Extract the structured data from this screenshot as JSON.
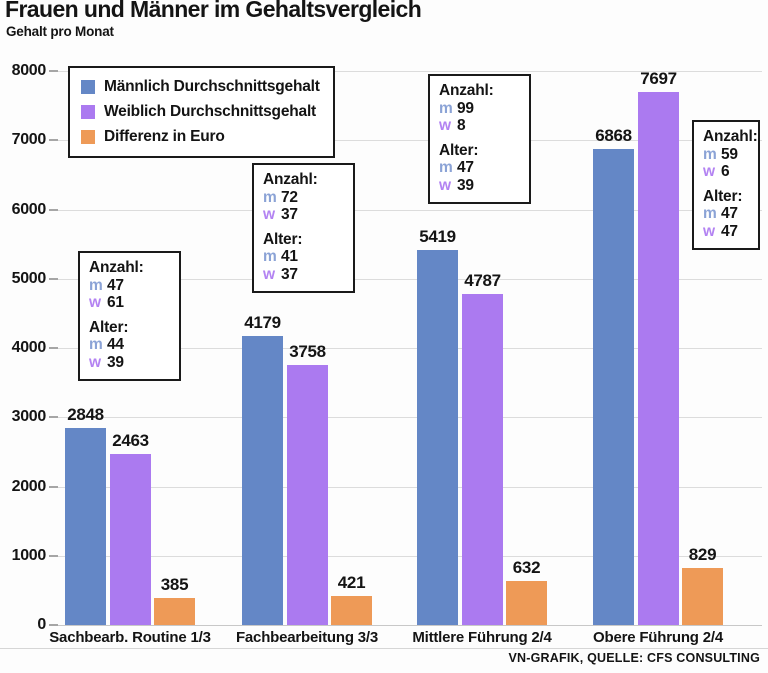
{
  "header": {
    "title": "Frauen und Männer im Gehaltsvergleich",
    "subtitle": "Gehalt pro Monat"
  },
  "source": "VN-GRAFIK, QUELLE: CFS CONSULTING",
  "colors": {
    "male": "#6487c6",
    "female": "#ab7af0",
    "diff": "#ee9a57",
    "male_key_text": "#8ba3d6",
    "female_key_text": "#b383f2",
    "grid": "#dcdcdc",
    "text": "#141414"
  },
  "legend": {
    "items": [
      {
        "label": "Männlich Durchschnittsgehalt",
        "color_key": "male"
      },
      {
        "label": "Weiblich Durchschnittsgehalt",
        "color_key": "female"
      },
      {
        "label": "Differenz in Euro",
        "color_key": "diff"
      }
    ]
  },
  "chart_data": {
    "type": "bar",
    "categories": [
      "Sachbearb. Routine 1/3",
      "Fachbearbeitung 3/3",
      "Mittlere Führung 2/4",
      "Obere Führung 2/4"
    ],
    "series": [
      {
        "name": "Männlich Durchschnittsgehalt",
        "color_key": "male",
        "values": [
          2848,
          4179,
          5419,
          6868
        ]
      },
      {
        "name": "Weiblich Durchschnittsgehalt",
        "color_key": "female",
        "values": [
          2463,
          3758,
          4787,
          7697
        ]
      },
      {
        "name": "Differenz in Euro",
        "color_key": "diff",
        "values": [
          385,
          421,
          632,
          829
        ]
      }
    ],
    "title": "Frauen und Männer im Gehaltsvergleich",
    "subtitle": "Gehalt pro Monat",
    "xlabel": "",
    "ylabel": "",
    "ylim": [
      0,
      8000
    ],
    "yticks": [
      0,
      1000,
      2000,
      3000,
      4000,
      5000,
      6000,
      7000,
      8000
    ],
    "grid": true,
    "legend_position": "top-left"
  },
  "annotation_labels": {
    "anzahl": "Anzahl:",
    "alter": "Alter:",
    "m": "m",
    "w": "w"
  },
  "annotations": [
    {
      "anzahl_m": "47",
      "anzahl_w": "61",
      "alter_m": "44",
      "alter_w": "39"
    },
    {
      "anzahl_m": "72",
      "anzahl_w": "37",
      "alter_m": "41",
      "alter_w": "37"
    },
    {
      "anzahl_m": "99",
      "anzahl_w": "8",
      "alter_m": "47",
      "alter_w": "39"
    },
    {
      "anzahl_m": "59",
      "anzahl_w": "6",
      "alter_m": "47",
      "alter_w": "47"
    }
  ]
}
